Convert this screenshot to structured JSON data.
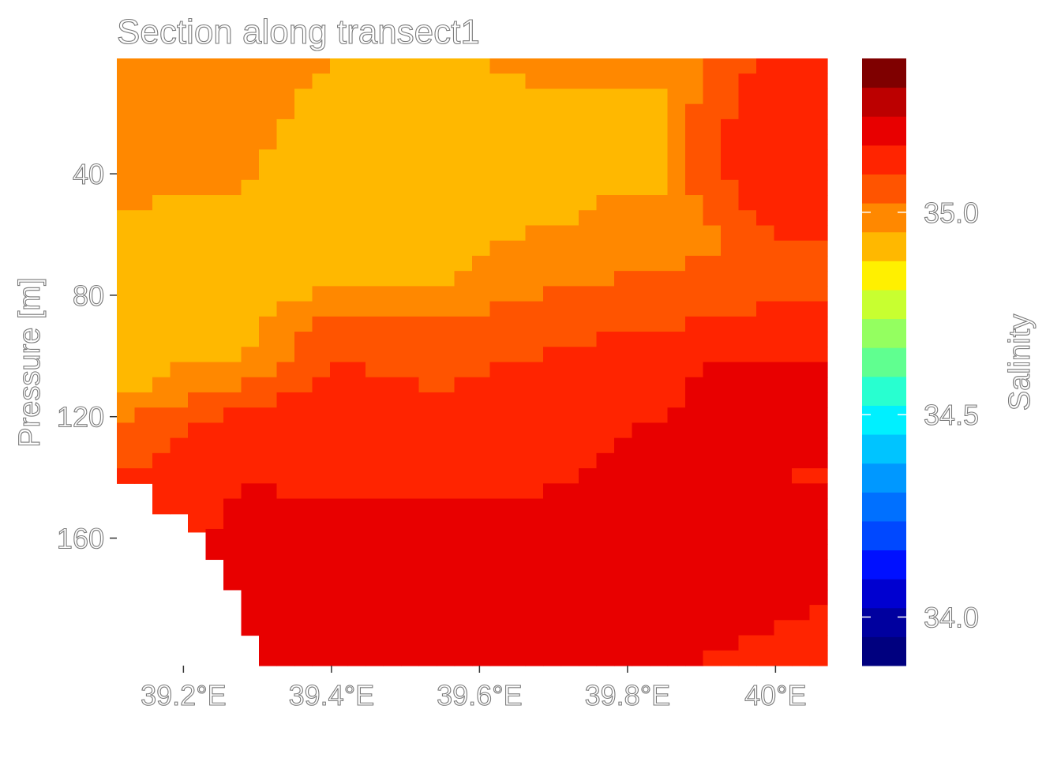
{
  "chart_data": {
    "type": "heatmap",
    "title": "Section along transect1",
    "xlabel": "",
    "ylabel": "Pressure [m]",
    "x_ticks": [
      39.2,
      39.4,
      39.6,
      39.8,
      40.0
    ],
    "x_tick_labels": [
      "39.2°E",
      "39.4°E",
      "39.6°E",
      "39.8°E",
      "40°E"
    ],
    "y_ticks": [
      40,
      80,
      120,
      160
    ],
    "y_tick_labels": [
      "40",
      "80",
      "120",
      "160"
    ],
    "xlim": [
      39.11,
      40.07
    ],
    "ylim": [
      2,
      202
    ],
    "y_reversed": true,
    "grid": false,
    "colorbar": {
      "title": "Salinity",
      "range": [
        33.88,
        35.38
      ],
      "ticks": [
        34.0,
        34.5,
        35.0
      ],
      "tick_labels": [
        "34.0",
        "34.5",
        "35.0"
      ],
      "colors": [
        "#00007f",
        "#00009f",
        "#0000d0",
        "#0010ff",
        "#0048ff",
        "#0070ff",
        "#0098ff",
        "#00c4ff",
        "#00f0ff",
        "#28ffd0",
        "#60ff90",
        "#94ff60",
        "#c8ff30",
        "#fff000",
        "#ffb800",
        "#ff8800",
        "#ff5400",
        "#ff2400",
        "#e80000",
        "#bc0000",
        "#7f0000"
      ]
    },
    "bottom_boundary": [
      {
        "lon": 39.11,
        "max_pressure": 142
      },
      {
        "lon": 39.17,
        "max_pressure": 152
      },
      {
        "lon": 39.21,
        "max_pressure": 158
      },
      {
        "lon": 39.23,
        "max_pressure": 167
      },
      {
        "lon": 39.25,
        "max_pressure": 177
      },
      {
        "lon": 39.28,
        "max_pressure": 192
      },
      {
        "lon": 39.3,
        "max_pressure": 202
      }
    ],
    "salinity_profiles": [
      {
        "lon": 39.11,
        "pressure": [
          2,
          30,
          60,
          90,
          110,
          120,
          130,
          140
        ],
        "salinity": [
          35.0,
          34.98,
          34.94,
          34.93,
          34.93,
          35.02,
          35.06,
          35.1
        ]
      },
      {
        "lon": 39.28,
        "pressure": [
          2,
          30,
          60,
          80,
          100,
          112,
          120,
          135,
          150,
          170,
          190,
          200
        ],
        "salinity": [
          35.0,
          34.97,
          34.93,
          34.92,
          34.94,
          35.05,
          35.12,
          35.15,
          35.18,
          35.2,
          35.21,
          35.2
        ]
      },
      {
        "lon": 39.4,
        "pressure": [
          2,
          30,
          55,
          75,
          85,
          95,
          110,
          125,
          140,
          160,
          180,
          202
        ],
        "salinity": [
          34.95,
          34.91,
          34.92,
          34.93,
          35.0,
          35.08,
          35.11,
          35.14,
          35.15,
          35.19,
          35.21,
          35.2
        ]
      },
      {
        "lon": 39.55,
        "pressure": [
          2,
          30,
          55,
          75,
          90,
          105,
          125,
          140,
          160,
          180,
          202
        ],
        "salinity": [
          34.95,
          34.92,
          34.93,
          34.95,
          35.03,
          35.08,
          35.12,
          35.15,
          35.19,
          35.2,
          35.19
        ]
      },
      {
        "lon": 39.7,
        "pressure": [
          2,
          30,
          55,
          70,
          85,
          100,
          120,
          140,
          160,
          180,
          202
        ],
        "salinity": [
          34.96,
          34.94,
          34.95,
          34.98,
          35.05,
          35.1,
          35.15,
          35.16,
          35.19,
          35.2,
          35.18
        ]
      },
      {
        "lon": 39.85,
        "pressure": [
          2,
          30,
          55,
          65,
          80,
          92,
          105,
          125,
          140,
          162,
          185,
          202
        ],
        "salinity": [
          34.96,
          34.94,
          34.96,
          35.0,
          35.06,
          35.1,
          35.15,
          35.17,
          35.18,
          35.21,
          35.19,
          35.17
        ]
      },
      {
        "lon": 39.92,
        "pressure": [
          2,
          20,
          40,
          60,
          80,
          95,
          105,
          125,
          140,
          162,
          185,
          202
        ],
        "salinity": [
          35.06,
          35.08,
          35.1,
          35.01,
          35.07,
          35.12,
          35.18,
          35.18,
          35.17,
          35.21,
          35.18,
          35.16
        ]
      },
      {
        "lon": 40.0,
        "pressure": [
          2,
          20,
          40,
          55,
          65,
          80,
          95,
          108,
          125,
          140,
          165,
          185,
          202
        ],
        "salinity": [
          35.12,
          35.13,
          35.14,
          35.14,
          35.04,
          35.08,
          35.14,
          35.21,
          35.18,
          35.17,
          35.22,
          35.17,
          35.15
        ]
      },
      {
        "lon": 40.07,
        "pressure": [
          2,
          20,
          40,
          55,
          65,
          80,
          95,
          108,
          125,
          140,
          165,
          185,
          202
        ],
        "salinity": [
          35.17,
          35.16,
          35.15,
          35.15,
          35.05,
          35.09,
          35.13,
          35.2,
          35.18,
          35.16,
          35.2,
          35.16,
          35.14
        ]
      }
    ]
  }
}
